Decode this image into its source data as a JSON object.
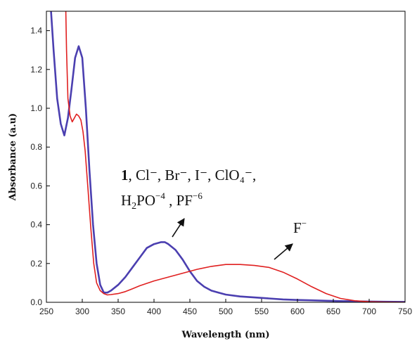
{
  "chart_data": {
    "type": "line",
    "xlabel": "Wavelength (nm)",
    "ylabel": "Absorbance (a.u)",
    "xlim": [
      250,
      750
    ],
    "ylim": [
      0,
      1.5
    ],
    "x_ticks": [
      250,
      300,
      350,
      400,
      450,
      500,
      550,
      600,
      650,
      700,
      750
    ],
    "y_ticks": [
      0.0,
      0.2,
      0.4,
      0.6,
      0.8,
      1.0,
      1.2,
      1.4
    ],
    "x_tick_labels": [
      "250",
      "300",
      "350",
      "400",
      "450",
      "500",
      "550",
      "600",
      "650",
      "700",
      "750"
    ],
    "y_tick_labels": [
      "0.0",
      "0.2",
      "0.4",
      "0.6",
      "0.8",
      "1.0",
      "1.2",
      "1.4"
    ],
    "grid": false,
    "series": [
      {
        "label_key": "annotation_group",
        "color": "#4b3fb0",
        "x": [
          255,
          260,
          265,
          270,
          275,
          280,
          285,
          290,
          295,
          300,
          305,
          310,
          315,
          320,
          325,
          330,
          335,
          340,
          350,
          360,
          370,
          380,
          390,
          400,
          410,
          415,
          420,
          430,
          440,
          450,
          460,
          470,
          480,
          490,
          500,
          520,
          540,
          560,
          580,
          600,
          620,
          640,
          660,
          680,
          700,
          720,
          750
        ],
        "y": [
          1.58,
          1.3,
          1.05,
          0.92,
          0.86,
          0.95,
          1.1,
          1.26,
          1.32,
          1.26,
          1.0,
          0.68,
          0.4,
          0.2,
          0.09,
          0.05,
          0.05,
          0.06,
          0.09,
          0.13,
          0.18,
          0.23,
          0.28,
          0.3,
          0.31,
          0.31,
          0.3,
          0.27,
          0.22,
          0.16,
          0.11,
          0.08,
          0.06,
          0.05,
          0.04,
          0.03,
          0.025,
          0.02,
          0.015,
          0.012,
          0.01,
          0.008,
          0.006,
          0.005,
          0.004,
          0.003,
          0.002
        ]
      },
      {
        "label_key": "annotation_fluoride",
        "color": "#e02020",
        "x": [
          277,
          278,
          280,
          283,
          286,
          289,
          292,
          295,
          298,
          301,
          304,
          308,
          312,
          316,
          320,
          325,
          330,
          335,
          340,
          350,
          360,
          370,
          380,
          400,
          420,
          440,
          460,
          480,
          500,
          520,
          540,
          560,
          580,
          600,
          620,
          640,
          660,
          680,
          700,
          720,
          750
        ],
        "y": [
          1.52,
          1.3,
          1.05,
          0.96,
          0.93,
          0.95,
          0.97,
          0.96,
          0.94,
          0.88,
          0.78,
          0.58,
          0.38,
          0.2,
          0.1,
          0.06,
          0.045,
          0.038,
          0.04,
          0.045,
          0.055,
          0.07,
          0.085,
          0.11,
          0.13,
          0.15,
          0.17,
          0.185,
          0.195,
          0.195,
          0.19,
          0.18,
          0.155,
          0.12,
          0.08,
          0.045,
          0.02,
          0.008,
          0.003,
          0.001,
          0.0
        ]
      }
    ],
    "annotations": {
      "group_line1": {
        "bold_number": "1",
        "text": ", Cl⁻, Br⁻, I⁻, ClO₄⁻,"
      },
      "group_line2": {
        "text_a": "H",
        "sub_a": "2",
        "text_b": "PO",
        "sup_b": "−4",
        "text_c": " , PF",
        "sup_c": "−6"
      },
      "fluoride": {
        "text": "F",
        "sup": "−"
      }
    }
  }
}
